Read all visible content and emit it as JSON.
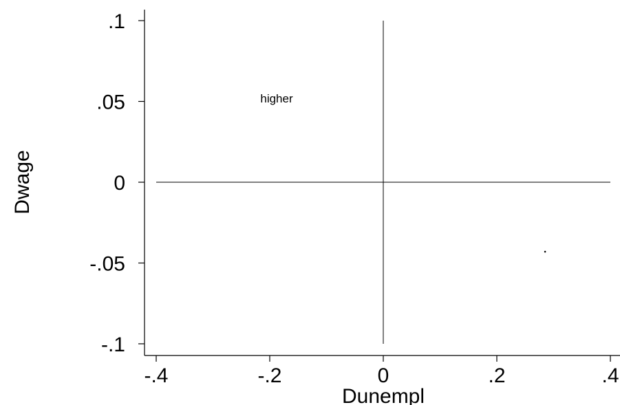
{
  "chart_data": {
    "type": "scatter",
    "title": "",
    "xlabel": "Dunempl",
    "ylabel": "Dwage",
    "xlim": [
      -0.4,
      0.4
    ],
    "ylim": [
      -0.1,
      0.1
    ],
    "x_ticks": [
      {
        "value": -0.4,
        "label": "-.4"
      },
      {
        "value": -0.2,
        "label": "-.2"
      },
      {
        "value": 0,
        "label": "0"
      },
      {
        "value": 0.2,
        "label": ".2"
      },
      {
        "value": 0.4,
        "label": ".4"
      }
    ],
    "y_ticks": [
      {
        "value": 0.1,
        "label": ".1"
      },
      {
        "value": 0.05,
        "label": ".05"
      },
      {
        "value": 0,
        "label": "0"
      },
      {
        "value": -0.05,
        "label": "-.05"
      },
      {
        "value": -0.1,
        "label": "-.1"
      }
    ],
    "reference_lines": [
      {
        "orientation": "horizontal",
        "value": 0,
        "from": -0.4,
        "to": 0.4
      },
      {
        "orientation": "vertical",
        "value": 0,
        "from": -0.1,
        "to": 0.1
      }
    ],
    "points": [
      {
        "x": 0.285,
        "y": -0.043
      }
    ],
    "annotations": [
      {
        "text": "higher",
        "x": -0.2,
        "y": 0.052
      }
    ],
    "grid": false,
    "legend": "none"
  }
}
